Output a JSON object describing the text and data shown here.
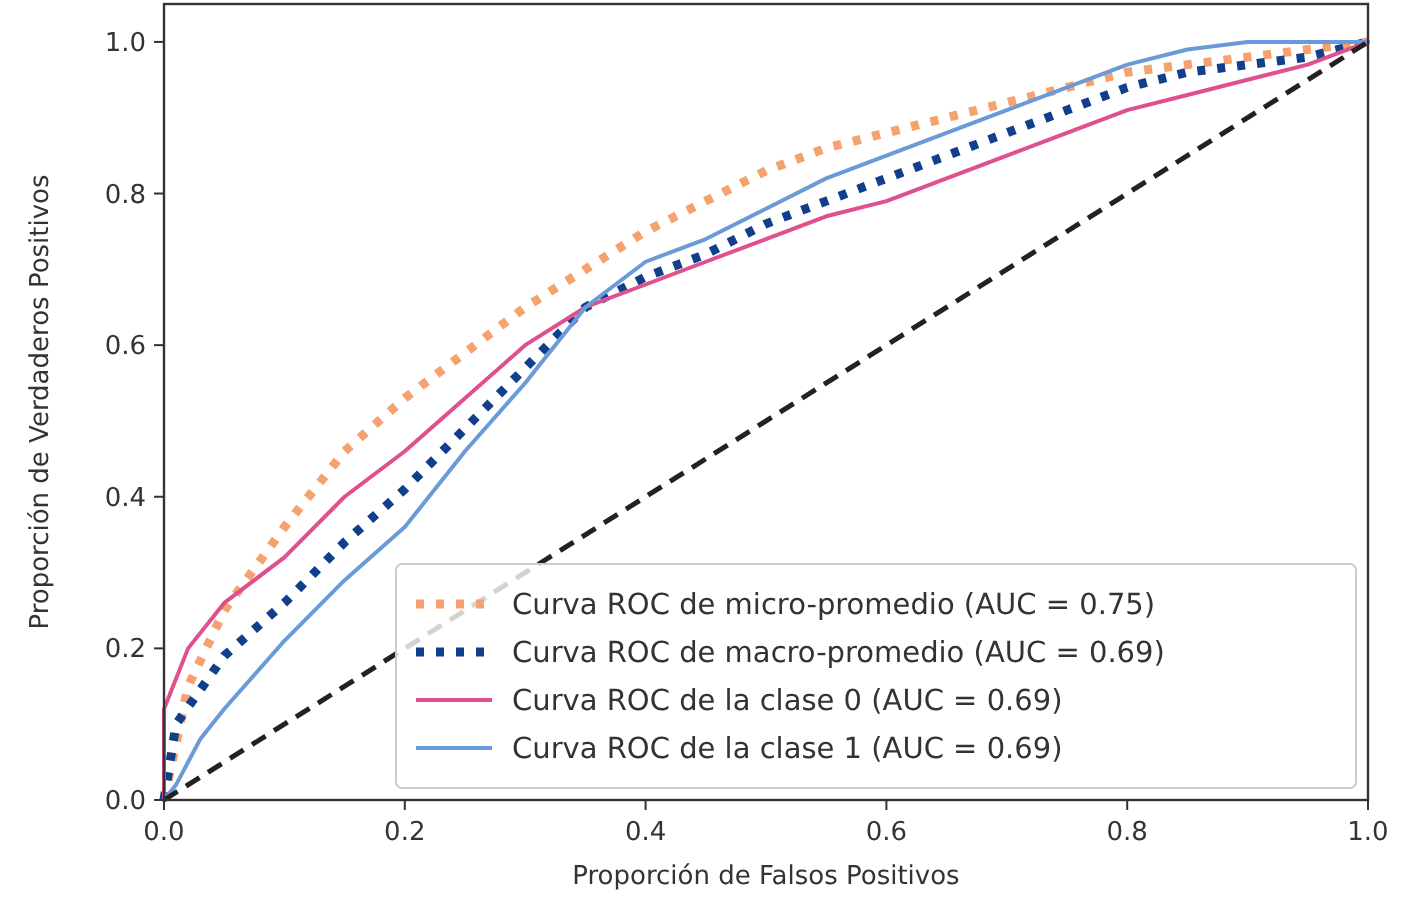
{
  "chart_data": {
    "type": "line",
    "xlabel": "Proporción de Falsos Positivos",
    "ylabel": "Proporción de Verdaderos Positivos",
    "xlim": [
      0,
      1
    ],
    "ylim": [
      0,
      1.05
    ],
    "xticks": [
      {
        "value": 0,
        "label": "0.0"
      },
      0.2,
      0.4,
      0.6,
      0.8,
      {
        "value": 1,
        "label": "1.0"
      }
    ],
    "yticks": [
      {
        "value": 0,
        "label": "0.0"
      },
      0.2,
      0.4,
      0.6,
      0.8,
      {
        "value": 1,
        "label": "1.0"
      }
    ],
    "grid": false,
    "legend": "bottom right",
    "series": [
      {
        "name": "Curva ROC de micro-promedio (AUC = 0.75)",
        "color": "#f5a26e",
        "line_style": "dotted",
        "x": [
          0,
          0.02,
          0.05,
          0.1,
          0.15,
          0.2,
          0.25,
          0.3,
          0.35,
          0.4,
          0.45,
          0.5,
          0.55,
          0.6,
          0.65,
          0.7,
          0.75,
          0.8,
          0.85,
          0.9,
          0.95,
          1
        ],
        "values": [
          0,
          0.15,
          0.25,
          0.36,
          0.46,
          0.53,
          0.59,
          0.65,
          0.7,
          0.75,
          0.79,
          0.83,
          0.86,
          0.88,
          0.9,
          0.92,
          0.94,
          0.96,
          0.97,
          0.98,
          0.99,
          1
        ]
      },
      {
        "name": "Curva ROC de macro-promedio (AUC = 0.69)",
        "color": "#123f8c",
        "line_style": "dotted",
        "x": [
          0,
          0.01,
          0.05,
          0.1,
          0.15,
          0.2,
          0.25,
          0.3,
          0.35,
          0.4,
          0.45,
          0.5,
          0.55,
          0.6,
          0.65,
          0.7,
          0.75,
          0.8,
          0.85,
          0.9,
          0.95,
          1
        ],
        "values": [
          0,
          0.1,
          0.19,
          0.26,
          0.34,
          0.41,
          0.49,
          0.57,
          0.65,
          0.69,
          0.72,
          0.76,
          0.79,
          0.82,
          0.85,
          0.88,
          0.91,
          0.94,
          0.96,
          0.97,
          0.98,
          1
        ]
      },
      {
        "name": "Curva ROC de la clase 0 (AUC = 0.69)",
        "color": "#e0508f",
        "line_style": "solid",
        "x": [
          0,
          0,
          0.02,
          0.05,
          0.1,
          0.15,
          0.2,
          0.25,
          0.3,
          0.35,
          0.4,
          0.45,
          0.5,
          0.55,
          0.6,
          0.65,
          0.7,
          0.75,
          0.8,
          0.85,
          0.9,
          0.95,
          1
        ],
        "values": [
          0,
          0.12,
          0.2,
          0.26,
          0.32,
          0.4,
          0.46,
          0.53,
          0.6,
          0.65,
          0.68,
          0.71,
          0.74,
          0.77,
          0.79,
          0.82,
          0.85,
          0.88,
          0.91,
          0.93,
          0.95,
          0.97,
          1
        ]
      },
      {
        "name": "Curva ROC de la clase 1 (AUC = 0.69)",
        "color": "#6a9bd8",
        "line_style": "solid",
        "x": [
          0,
          0.01,
          0.03,
          0.05,
          0.1,
          0.15,
          0.2,
          0.25,
          0.3,
          0.35,
          0.4,
          0.45,
          0.5,
          0.55,
          0.6,
          0.65,
          0.7,
          0.75,
          0.8,
          0.85,
          0.9,
          0.95,
          1
        ],
        "values": [
          0,
          0.02,
          0.08,
          0.12,
          0.21,
          0.29,
          0.36,
          0.46,
          0.55,
          0.65,
          0.71,
          0.74,
          0.78,
          0.82,
          0.85,
          0.88,
          0.91,
          0.94,
          0.97,
          0.99,
          1,
          1,
          1
        ]
      },
      {
        "color": "#222222",
        "line_style": "dashed",
        "x": [
          0,
          1
        ],
        "values": [
          0,
          1
        ]
      }
    ]
  }
}
